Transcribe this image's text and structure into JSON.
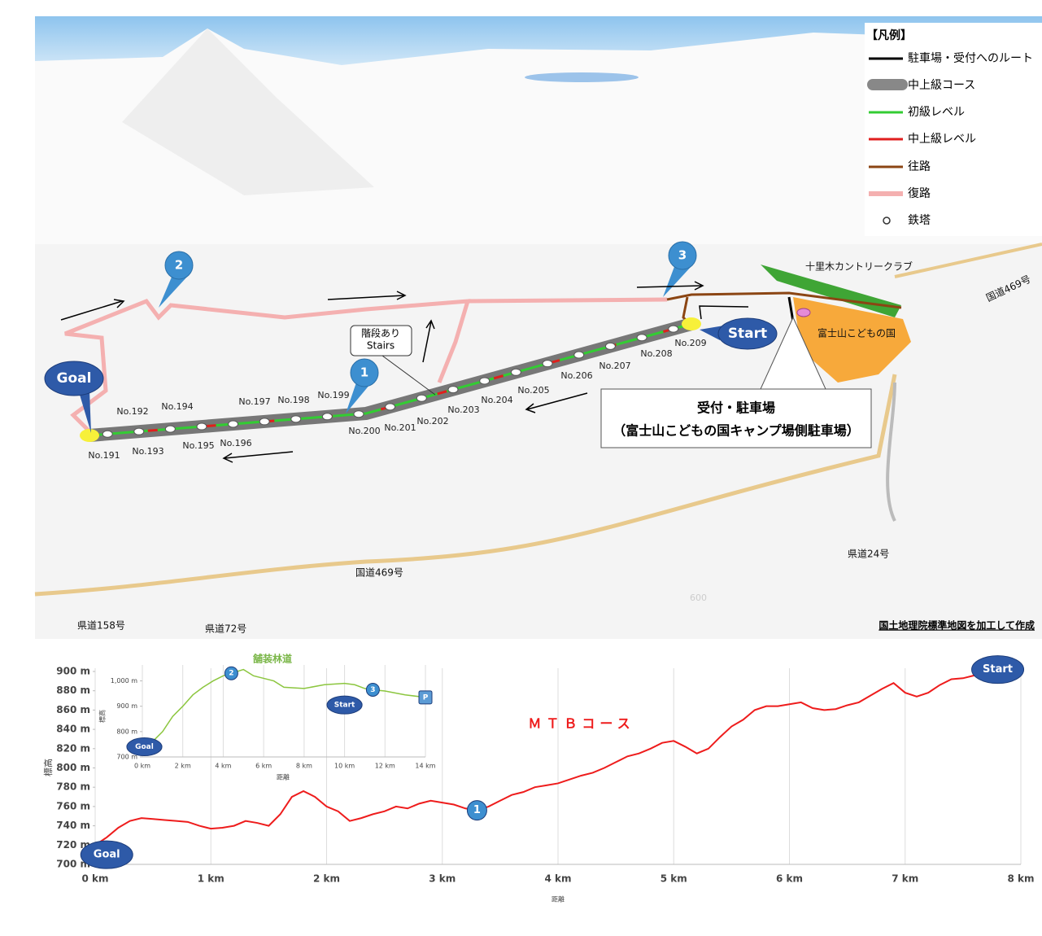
{
  "map": {
    "legend": {
      "title": "【凡例】",
      "items": [
        "駐車場・受付へのルート",
        "中上級コース",
        "初級レベル",
        "中上級レベル",
        "往路",
        "復路",
        "鉄塔"
      ]
    },
    "pylons": [
      "No.191",
      "No.192",
      "No.193",
      "No.194",
      "No.195",
      "No.196",
      "No.197",
      "No.198",
      "No.199",
      "No.200",
      "No.201",
      "No.202",
      "No.203",
      "No.204",
      "No.205",
      "No.206",
      "No.207",
      "No.208",
      "No.209"
    ],
    "markers": {
      "goal": "Goal",
      "start": "Start",
      "points": [
        "1",
        "2",
        "3"
      ]
    },
    "stairs": [
      "階段あり",
      "Stairs"
    ],
    "reception": [
      "受付・駐車場",
      "（富士山こどもの国キャンプ場側駐車場）"
    ],
    "places": [
      "十里木カントリークラブ",
      "国道469号",
      "富士山こどもの国",
      "県道24号",
      "国道469号",
      "県道158号",
      "県道72号",
      "600"
    ],
    "credit": "国土地理院標準地図を加工して作成"
  },
  "chart_data": [
    {
      "type": "line",
      "title": "ＭＴＢコース",
      "xlabel": "距離",
      "ylabel": "標高",
      "grid": "x",
      "x": [
        0,
        0.1,
        0.2,
        0.3,
        0.4,
        0.5,
        0.6,
        0.7,
        0.8,
        0.9,
        1.0,
        1.1,
        1.2,
        1.3,
        1.4,
        1.5,
        1.6,
        1.7,
        1.8,
        1.9,
        2.0,
        2.1,
        2.2,
        2.3,
        2.4,
        2.5,
        2.6,
        2.7,
        2.8,
        2.9,
        3.0,
        3.1,
        3.2,
        3.3,
        3.4,
        3.5,
        3.6,
        3.7,
        3.8,
        3.9,
        4.0,
        4.1,
        4.2,
        4.3,
        4.4,
        4.5,
        4.6,
        4.7,
        4.8,
        4.9,
        5.0,
        5.1,
        5.2,
        5.3,
        5.4,
        5.5,
        5.6,
        5.7,
        5.8,
        5.9,
        6.0,
        6.1,
        6.2,
        6.3,
        6.4,
        6.5,
        6.6,
        6.7,
        6.8,
        6.9,
        7.0,
        7.1,
        7.2,
        7.3,
        7.4,
        7.5,
        7.6,
        7.7,
        7.8
      ],
      "series": [
        {
          "name": "ＭＴＢコース",
          "color": "#ee1c1c",
          "values": [
            720,
            728,
            738,
            745,
            748,
            747,
            746,
            745,
            744,
            740,
            737,
            738,
            740,
            745,
            743,
            740,
            752,
            770,
            776,
            770,
            760,
            755,
            745,
            748,
            752,
            755,
            760,
            758,
            763,
            766,
            764,
            762,
            758,
            756,
            760,
            766,
            772,
            775,
            780,
            782,
            784,
            788,
            792,
            795,
            800,
            806,
            812,
            815,
            820,
            826,
            828,
            822,
            815,
            820,
            832,
            843,
            850,
            860,
            864,
            864,
            866,
            868,
            862,
            860,
            861,
            865,
            868,
            875,
            882,
            888,
            878,
            874,
            878,
            886,
            892,
            893,
            896,
            900,
            902
          ]
        }
      ],
      "xlim": [
        0,
        8
      ],
      "xticks": [
        {
          "value": 0,
          "label": "0 km"
        },
        {
          "value": 1,
          "label": "1 km"
        },
        {
          "value": 2,
          "label": "2 km"
        },
        {
          "value": 3,
          "label": "3 km"
        },
        {
          "value": 4,
          "label": "4 km"
        },
        {
          "value": 5,
          "label": "5 km"
        },
        {
          "value": 6,
          "label": "6 km"
        },
        {
          "value": 7,
          "label": "7 km"
        },
        {
          "value": 8,
          "label": "8 km"
        }
      ],
      "ylim": [
        700,
        900
      ],
      "yticks": [
        {
          "value": 700,
          "label": "700 m"
        },
        {
          "value": 720,
          "label": "720 m"
        },
        {
          "value": 740,
          "label": "740 m"
        },
        {
          "value": 760,
          "label": "760 m"
        },
        {
          "value": 780,
          "label": "780 m"
        },
        {
          "value": 800,
          "label": "800 m"
        },
        {
          "value": 820,
          "label": "820 m"
        },
        {
          "value": 840,
          "label": "840 m"
        },
        {
          "value": 860,
          "label": "860 m"
        },
        {
          "value": 880,
          "label": "880 m"
        },
        {
          "value": 900,
          "label": "900 m"
        }
      ],
      "annotations": [
        {
          "text": "Goal",
          "x": 0.1,
          "y": 710,
          "color": "#2e5aa8"
        },
        {
          "text": "1",
          "x": 3.3,
          "y": 756,
          "color": "#3d8fd0"
        },
        {
          "text": "Start",
          "x": 7.8,
          "y": 902,
          "color": "#2e5aa8"
        }
      ]
    },
    {
      "type": "line",
      "title": "舗装林道",
      "xlabel": "距離",
      "ylabel": "標高",
      "grid": "x",
      "x": [
        0.5,
        1,
        1.5,
        2,
        2.5,
        3,
        3.5,
        4,
        4.4,
        5,
        5.5,
        6,
        6.5,
        7,
        8,
        9,
        10,
        10.5,
        11,
        11.4,
        12,
        13,
        14
      ],
      "series": [
        {
          "name": "舗装林道",
          "color": "#8cc63f",
          "values": [
            760,
            800,
            860,
            900,
            945,
            975,
            1000,
            1020,
            1030,
            1045,
            1020,
            1010,
            1000,
            975,
            970,
            985,
            990,
            985,
            970,
            965,
            960,
            945,
            935
          ]
        }
      ],
      "xlim": [
        0,
        14
      ],
      "xticks": [
        {
          "value": 0,
          "label": "0 km"
        },
        {
          "value": 2,
          "label": "2 km"
        },
        {
          "value": 4,
          "label": "4 km"
        },
        {
          "value": 6,
          "label": "6 km"
        },
        {
          "value": 8,
          "label": "8 km"
        },
        {
          "value": 10,
          "label": "10 km"
        },
        {
          "value": 12,
          "label": "12 km"
        },
        {
          "value": 14,
          "label": "14 km"
        }
      ],
      "ylim": [
        700,
        1050
      ],
      "yticks": [
        {
          "value": 700,
          "label": "700 m"
        },
        {
          "value": 800,
          "label": "800 m"
        },
        {
          "value": 900,
          "label": "900 m"
        },
        {
          "value": 1000,
          "label": "1,000 m"
        }
      ],
      "annotations": [
        {
          "text": "Goal",
          "x": 0.1,
          "y": 740,
          "color": "#2e5aa8"
        },
        {
          "text": "2",
          "x": 4.4,
          "y": 1030,
          "color": "#3d8fd0"
        },
        {
          "text": "Start",
          "x": 10,
          "y": 905,
          "color": "#2e5aa8"
        },
        {
          "text": "3",
          "x": 11.4,
          "y": 965,
          "color": "#3d8fd0"
        },
        {
          "text": "P",
          "x": 14,
          "y": 935,
          "color": "#5b9bd5",
          "shape": "square"
        }
      ]
    }
  ]
}
